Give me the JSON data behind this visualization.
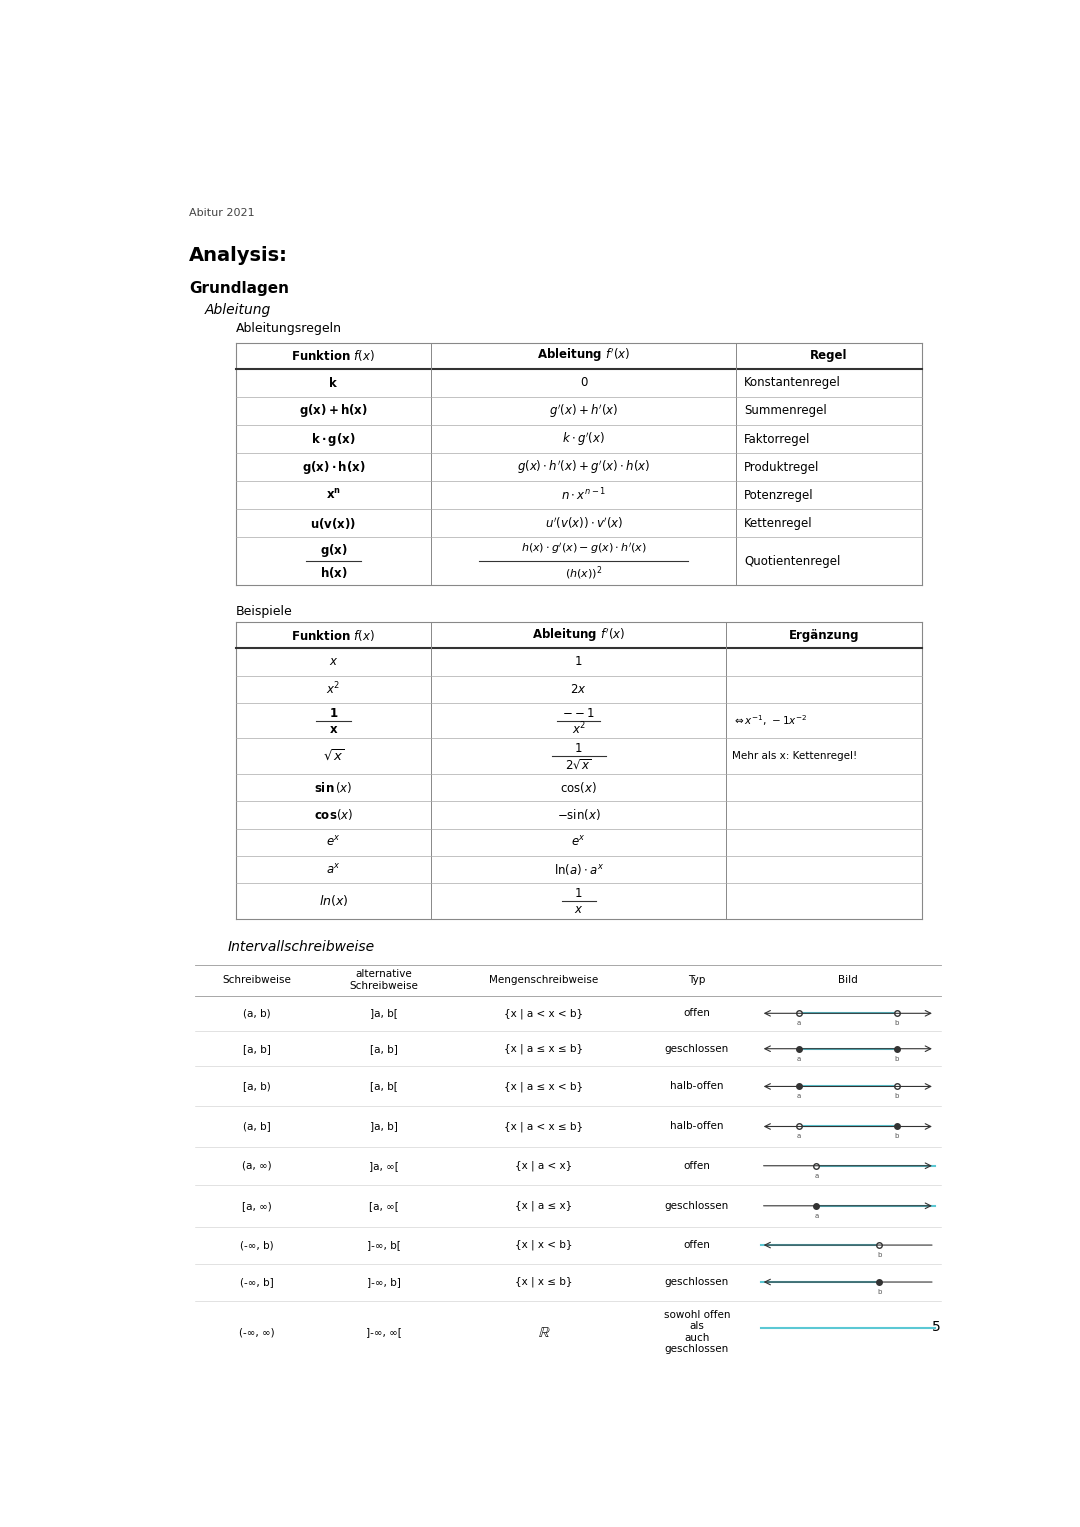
{
  "page_header": "Abitur 2021",
  "section_title": "Analysis:",
  "subsection": "Grundlagen",
  "italic_heading": "Ableitung",
  "table1_label": "Ableitungsregeln",
  "table2_label": "Beispiele",
  "interval_label": "Intervallschreibweise",
  "page_number": "5",
  "bg_color": "#ffffff",
  "cyan_color": "#5bc8d4",
  "arrow_color": "#333333",
  "dark_line": "#333333",
  "mid_line": "#666666",
  "light_line": "#aaaaaa",
  "very_light_line": "#cccccc"
}
